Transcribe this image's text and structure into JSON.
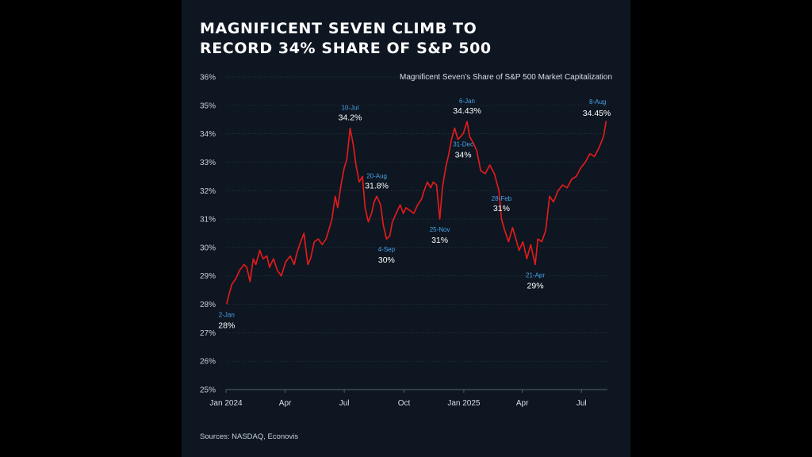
{
  "title_line1": "Magnificent Seven Climb to",
  "title_line2": "Record 34% Share of S&P 500",
  "source": "Sources: NASDAQ, Econovis",
  "colors": {
    "line": "#e01b1b",
    "annotation_date": "#4aa3e8",
    "background": "#0d1621"
  },
  "chart_data": {
    "type": "line",
    "title": "Magnificent Seven Climb to Record 34% Share of S&P 500",
    "legend": "Magnificent Seven's Share of S&P 500 Market Capitalization",
    "legend_placement": "top-right",
    "ylim": [
      25,
      36
    ],
    "yticks": [
      "25%",
      "26%",
      "27%",
      "28%",
      "29%",
      "30%",
      "31%",
      "32%",
      "33%",
      "34%",
      "35%",
      "36%"
    ],
    "xticks": [
      {
        "date": "2024-01-01",
        "label": "Jan 2024"
      },
      {
        "date": "2024-04-01",
        "label": "Apr"
      },
      {
        "date": "2024-07-01",
        "label": "Jul"
      },
      {
        "date": "2024-10-01",
        "label": "Oct"
      },
      {
        "date": "2025-01-01",
        "label": "Jan 2025"
      },
      {
        "date": "2025-04-01",
        "label": "Apr"
      },
      {
        "date": "2025-07-01",
        "label": "Jul"
      }
    ],
    "grid": true,
    "series": [
      {
        "name": "Magnificent Seven's Share of S&P 500 Market Capitalization",
        "points": [
          [
            "2024-01-02",
            28.0
          ],
          [
            "2024-01-05",
            28.3
          ],
          [
            "2024-01-10",
            28.7
          ],
          [
            "2024-01-16",
            28.9
          ],
          [
            "2024-01-22",
            29.2
          ],
          [
            "2024-01-29",
            29.4
          ],
          [
            "2024-02-02",
            29.3
          ],
          [
            "2024-02-07",
            28.8
          ],
          [
            "2024-02-12",
            29.6
          ],
          [
            "2024-02-16",
            29.4
          ],
          [
            "2024-02-22",
            29.9
          ],
          [
            "2024-02-27",
            29.6
          ],
          [
            "2024-03-04",
            29.7
          ],
          [
            "2024-03-08",
            29.3
          ],
          [
            "2024-03-14",
            29.6
          ],
          [
            "2024-03-20",
            29.2
          ],
          [
            "2024-03-26",
            29.0
          ],
          [
            "2024-04-02",
            29.5
          ],
          [
            "2024-04-09",
            29.7
          ],
          [
            "2024-04-15",
            29.4
          ],
          [
            "2024-04-19",
            29.8
          ],
          [
            "2024-04-25",
            30.2
          ],
          [
            "2024-04-30",
            30.5
          ],
          [
            "2024-05-06",
            29.4
          ],
          [
            "2024-05-10",
            29.6
          ],
          [
            "2024-05-16",
            30.2
          ],
          [
            "2024-05-22",
            30.3
          ],
          [
            "2024-05-28",
            30.1
          ],
          [
            "2024-06-03",
            30.3
          ],
          [
            "2024-06-07",
            30.6
          ],
          [
            "2024-06-12",
            31.0
          ],
          [
            "2024-06-17",
            31.8
          ],
          [
            "2024-06-21",
            31.4
          ],
          [
            "2024-06-26",
            32.2
          ],
          [
            "2024-07-01",
            32.8
          ],
          [
            "2024-07-05",
            33.1
          ],
          [
            "2024-07-10",
            34.2
          ],
          [
            "2024-07-15",
            33.6
          ],
          [
            "2024-07-19",
            32.9
          ],
          [
            "2024-07-24",
            32.3
          ],
          [
            "2024-07-29",
            32.5
          ],
          [
            "2024-08-02",
            31.4
          ],
          [
            "2024-08-07",
            30.9
          ],
          [
            "2024-08-12",
            31.2
          ],
          [
            "2024-08-16",
            31.6
          ],
          [
            "2024-08-20",
            31.8
          ],
          [
            "2024-08-26",
            31.5
          ],
          [
            "2024-08-30",
            30.8
          ],
          [
            "2024-09-04",
            30.3
          ],
          [
            "2024-09-09",
            30.4
          ],
          [
            "2024-09-13",
            30.9
          ],
          [
            "2024-09-19",
            31.2
          ],
          [
            "2024-09-25",
            31.5
          ],
          [
            "2024-09-30",
            31.2
          ],
          [
            "2024-10-04",
            31.4
          ],
          [
            "2024-10-10",
            31.3
          ],
          [
            "2024-10-16",
            31.2
          ],
          [
            "2024-10-22",
            31.5
          ],
          [
            "2024-10-28",
            31.7
          ],
          [
            "2024-11-01",
            32.0
          ],
          [
            "2024-11-06",
            32.3
          ],
          [
            "2024-11-11",
            32.1
          ],
          [
            "2024-11-15",
            32.3
          ],
          [
            "2024-11-20",
            32.2
          ],
          [
            "2024-11-25",
            31.0
          ],
          [
            "2024-11-29",
            32.1
          ],
          [
            "2024-12-04",
            32.8
          ],
          [
            "2024-12-09",
            33.3
          ],
          [
            "2024-12-13",
            33.8
          ],
          [
            "2024-12-18",
            34.2
          ],
          [
            "2024-12-23",
            33.8
          ],
          [
            "2024-12-31",
            34.0
          ],
          [
            "2025-01-06",
            34.43
          ],
          [
            "2025-01-10",
            33.9
          ],
          [
            "2025-01-15",
            33.7
          ],
          [
            "2025-01-21",
            33.4
          ],
          [
            "2025-01-27",
            32.7
          ],
          [
            "2025-02-03",
            32.6
          ],
          [
            "2025-02-10",
            32.9
          ],
          [
            "2025-02-17",
            32.6
          ],
          [
            "2025-02-24",
            32.0
          ],
          [
            "2025-02-28",
            31.0
          ],
          [
            "2025-03-05",
            30.6
          ],
          [
            "2025-03-11",
            30.2
          ],
          [
            "2025-03-17",
            30.7
          ],
          [
            "2025-03-21",
            30.4
          ],
          [
            "2025-03-27",
            29.9
          ],
          [
            "2025-04-02",
            30.2
          ],
          [
            "2025-04-08",
            29.6
          ],
          [
            "2025-04-14",
            30.1
          ],
          [
            "2025-04-21",
            29.4
          ],
          [
            "2025-04-25",
            30.3
          ],
          [
            "2025-05-01",
            30.2
          ],
          [
            "2025-05-07",
            30.6
          ],
          [
            "2025-05-13",
            31.8
          ],
          [
            "2025-05-19",
            31.6
          ],
          [
            "2025-05-26",
            32.0
          ],
          [
            "2025-06-02",
            32.2
          ],
          [
            "2025-06-09",
            32.1
          ],
          [
            "2025-06-16",
            32.4
          ],
          [
            "2025-06-23",
            32.5
          ],
          [
            "2025-06-30",
            32.8
          ],
          [
            "2025-07-07",
            33.0
          ],
          [
            "2025-07-14",
            33.3
          ],
          [
            "2025-07-21",
            33.2
          ],
          [
            "2025-07-28",
            33.5
          ],
          [
            "2025-08-04",
            33.9
          ],
          [
            "2025-08-08",
            34.45
          ]
        ]
      }
    ],
    "annotations": [
      {
        "date_label": "2-Jan",
        "value_label": "28%",
        "date": "2024-01-02",
        "value": 28.0,
        "pos": "below"
      },
      {
        "date_label": "10-Jul",
        "value_label": "34.2%",
        "date": "2024-07-10",
        "value": 34.2,
        "pos": "above"
      },
      {
        "date_label": "20-Aug",
        "value_label": "31.8%",
        "date": "2024-08-20",
        "value": 31.8,
        "pos": "above"
      },
      {
        "date_label": "4-Sep",
        "value_label": "30%",
        "date": "2024-09-04",
        "value": 30.3,
        "pos": "below"
      },
      {
        "date_label": "25-Nov",
        "value_label": "31%",
        "date": "2024-11-25",
        "value": 31.0,
        "pos": "below"
      },
      {
        "date_label": "31-Dec",
        "value_label": "34%",
        "date": "2024-12-31",
        "value": 34.0,
        "pos": "below"
      },
      {
        "date_label": "6-Jan",
        "value_label": "34.43%",
        "date": "2025-01-06",
        "value": 34.43,
        "pos": "above"
      },
      {
        "date_label": "28-Feb",
        "value_label": "31%",
        "date": "2025-02-28",
        "value": 31.0,
        "pos": "above"
      },
      {
        "date_label": "21-Apr",
        "value_label": "29%",
        "date": "2025-04-21",
        "value": 29.4,
        "pos": "below"
      },
      {
        "date_label": "8-Aug",
        "value_label": "34.45%",
        "date": "2025-08-08",
        "value": 34.45,
        "pos": "above"
      }
    ]
  }
}
